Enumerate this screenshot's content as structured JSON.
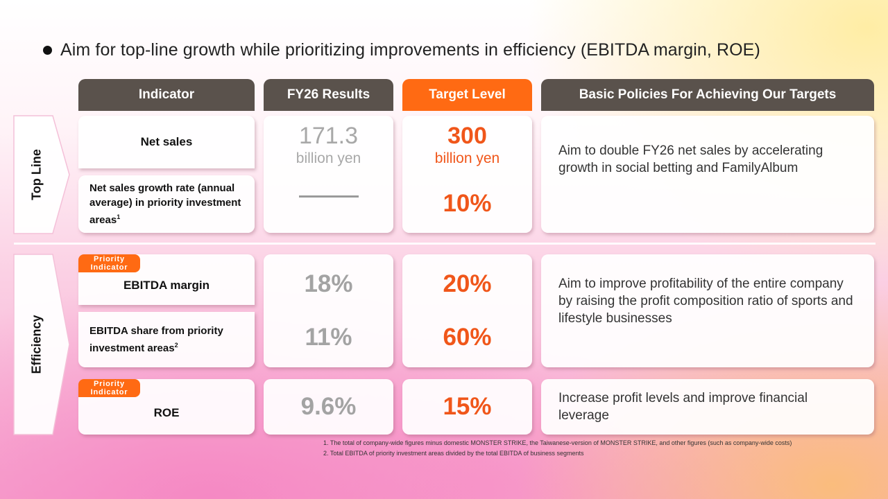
{
  "title": "Aim for top-line growth while prioritizing improvements in efficiency (EBITDA margin, ROE)",
  "headers": {
    "indicator": "Indicator",
    "results": "FY26 Results",
    "target": "Target Level",
    "policies": "Basic Policies For Achieving Our Targets"
  },
  "sections": {
    "top_line": "Top Line",
    "efficiency": "Efficiency"
  },
  "badge": {
    "line1": "Priority",
    "line2": "Indicator"
  },
  "rows": {
    "net_sales": {
      "indicator": "Net sales",
      "result_value": "171.3",
      "result_unit": "billion yen",
      "target_value": "300",
      "target_unit": "billion yen"
    },
    "growth_rate": {
      "indicator": "Net sales growth rate (annual average) in priority investment areas",
      "footnote_ref": "1",
      "target": "10%"
    },
    "ebitda_margin": {
      "indicator": "EBITDA margin",
      "result": "18%",
      "target": "20%"
    },
    "ebitda_share": {
      "indicator": "EBITDA share from priority investment areas",
      "footnote_ref": "2",
      "result": "11%",
      "target": "60%"
    },
    "roe": {
      "indicator": "ROE",
      "result": "9.6%",
      "target": "15%"
    }
  },
  "policies": {
    "top_line": "Aim to double FY26 net sales by accelerating growth in social betting and FamilyAlbum",
    "efficiency": "Aim to improve profitability of the entire company by raising the profit composition ratio of sports and lifestyle businesses",
    "roe": "Increase profit levels and improve financial leverage"
  },
  "footnotes": [
    "1. The total of company-wide figures minus domestic MONSTER STRIKE, the Taiwanese-version of MONSTER STRIKE, and other figures (such as company-wide costs)",
    "2. Total EBITDA of priority investment areas divided by the total EBITDA of business segments"
  ],
  "colors": {
    "header_dark": "#5a524c",
    "accent_orange": "#ff6a13",
    "target_text": "#f0561a",
    "result_text": "#a3a3a3"
  }
}
